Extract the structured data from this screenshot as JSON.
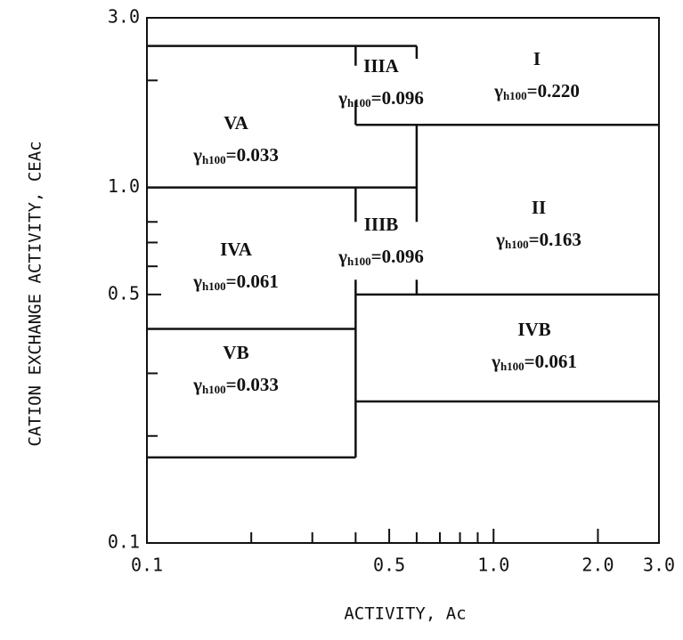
{
  "chart_data": {
    "type": "region_map",
    "x_label": "ACTIVITY, Ac",
    "y_label": "CATION EXCHANGE ACTIVITY, CEAc",
    "log_x": true,
    "log_y": true,
    "xlim": [
      0.1,
      3.0
    ],
    "ylim": [
      0.1,
      3.0
    ],
    "xticks": [
      0.1,
      0.5,
      {
        "value": 1,
        "label": "1.0"
      },
      {
        "value": 2,
        "label": "2.0"
      },
      {
        "value": 3,
        "label": "3.0"
      }
    ],
    "yticks": [
      0.1,
      0.5,
      {
        "value": 1,
        "label": "1.0"
      },
      {
        "value": 3,
        "label": "3.0"
      }
    ],
    "xminorticks": [
      0.2,
      0.3,
      0.4,
      0.6,
      0.7,
      0.8,
      0.9
    ],
    "yminorticks": [
      0.2,
      0.3,
      0.4,
      0.6,
      0.7,
      0.8,
      2
    ],
    "color": "#111111",
    "symbol": "γ",
    "subscript": "h100",
    "regions": [
      {
        "name": "VA",
        "gamma": "=0.033"
      },
      {
        "name": "IIIA",
        "gamma": "=0.096"
      },
      {
        "name": "I",
        "gamma": "=0.220"
      },
      {
        "name": "IVA",
        "gamma": "=0.061"
      },
      {
        "name": "IIIB",
        "gamma": "=0.096"
      },
      {
        "name": "II",
        "gamma": "=0.163"
      },
      {
        "name": "VB",
        "gamma": "=0.033"
      },
      {
        "name": "IVB",
        "gamma": "=0.061"
      }
    ],
    "boundaries": [
      {
        "x": [
          0.1,
          0.6
        ],
        "y": [
          2.5,
          2.5
        ]
      },
      {
        "x": [
          0.1,
          0.6
        ],
        "y": [
          1,
          1
        ]
      },
      {
        "x": [
          0.6,
          0.6
        ],
        "y": [
          0.8,
          1.5
        ]
      },
      {
        "x": [
          0.6,
          0.6
        ],
        "y": [
          2.3,
          2.5
        ]
      },
      {
        "x": [
          0.4,
          3
        ],
        "y": [
          1.5,
          1.5
        ]
      },
      {
        "x": [
          0.4,
          0.4
        ],
        "y": [
          1.5,
          1.75
        ]
      },
      {
        "x": [
          0.4,
          0.4
        ],
        "y": [
          2.2,
          2.5
        ]
      },
      {
        "x": [
          0.4,
          0.4
        ],
        "y": [
          0.8,
          1
        ]
      },
      {
        "x": [
          0.4,
          3
        ],
        "y": [
          0.5,
          0.5
        ]
      },
      {
        "x": [
          0.6,
          0.6
        ],
        "y": [
          0.5,
          0.55
        ]
      },
      {
        "x": [
          0.4,
          3
        ],
        "y": [
          0.25,
          0.25
        ]
      },
      {
        "x": [
          0.1,
          0.4
        ],
        "y": [
          0.4,
          0.4
        ]
      },
      {
        "x": [
          0.1,
          0.4
        ],
        "y": [
          0.174,
          0.174
        ]
      },
      {
        "x": [
          0.4,
          0.4
        ],
        "y": [
          0.174,
          0.55
        ]
      }
    ]
  }
}
